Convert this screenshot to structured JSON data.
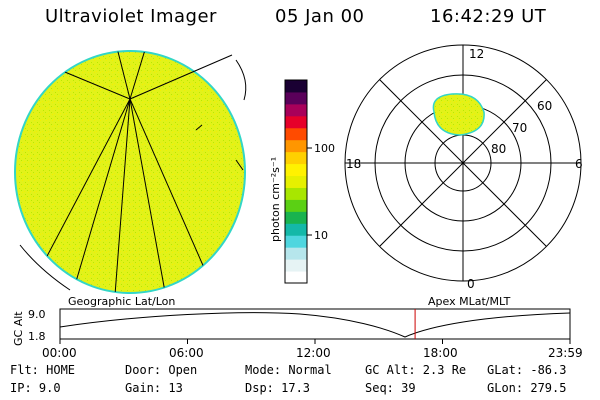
{
  "header": {
    "title": "Ultraviolet Imager",
    "date": "05 Jan 00",
    "time": "16:42:29 UT"
  },
  "colorbar": {
    "unit_label": "photon cm⁻²s⁻¹",
    "ticks": [
      {
        "value": 100,
        "label": "100"
      },
      {
        "value": 10,
        "label": "10"
      }
    ],
    "colors": [
      "#ffffff",
      "#e6f3f4",
      "#b6e6ec",
      "#4fd6df",
      "#14b8a8",
      "#19b34f",
      "#5bd014",
      "#a8e600",
      "#e6f000",
      "#fff200",
      "#ffd000",
      "#ff9600",
      "#ff4b00",
      "#e6002a",
      "#a8005a",
      "#5a005a",
      "#1a0033"
    ]
  },
  "polar_plot": {
    "mlt_labels": {
      "top": "12",
      "left": "18",
      "right": "6",
      "bottom": "0"
    },
    "lat_labels": [
      "60",
      "70",
      "80"
    ]
  },
  "timeline": {
    "left_title": "Geographic Lat/Lon",
    "right_title": "Apex MLat/MLT",
    "y_axis_label": "GC Alt",
    "y_ticks": [
      "9.0",
      "1.8"
    ],
    "x_ticks": [
      "00:00",
      "06:00",
      "12:00",
      "18:00",
      "23:59"
    ],
    "marker_time_hours": 16.71
  },
  "colors": {
    "disk_fill": "#e2f21a",
    "disk_edge": "#33d6c7",
    "grid_lines": "#000000",
    "marker": "#cc0000"
  },
  "info": {
    "flt": "Flt: HOME",
    "ip": "IP:  9.0",
    "door": "Door: Open",
    "gain": "Gain: 13",
    "mode": "Mode: Normal",
    "dsp": "Dsp:   17.3",
    "gc_alt": "GC Alt: 2.3 Re",
    "seq": "Seq: 39",
    "glat": "GLat: -86.3",
    "glon": "GLon: 279.5"
  }
}
